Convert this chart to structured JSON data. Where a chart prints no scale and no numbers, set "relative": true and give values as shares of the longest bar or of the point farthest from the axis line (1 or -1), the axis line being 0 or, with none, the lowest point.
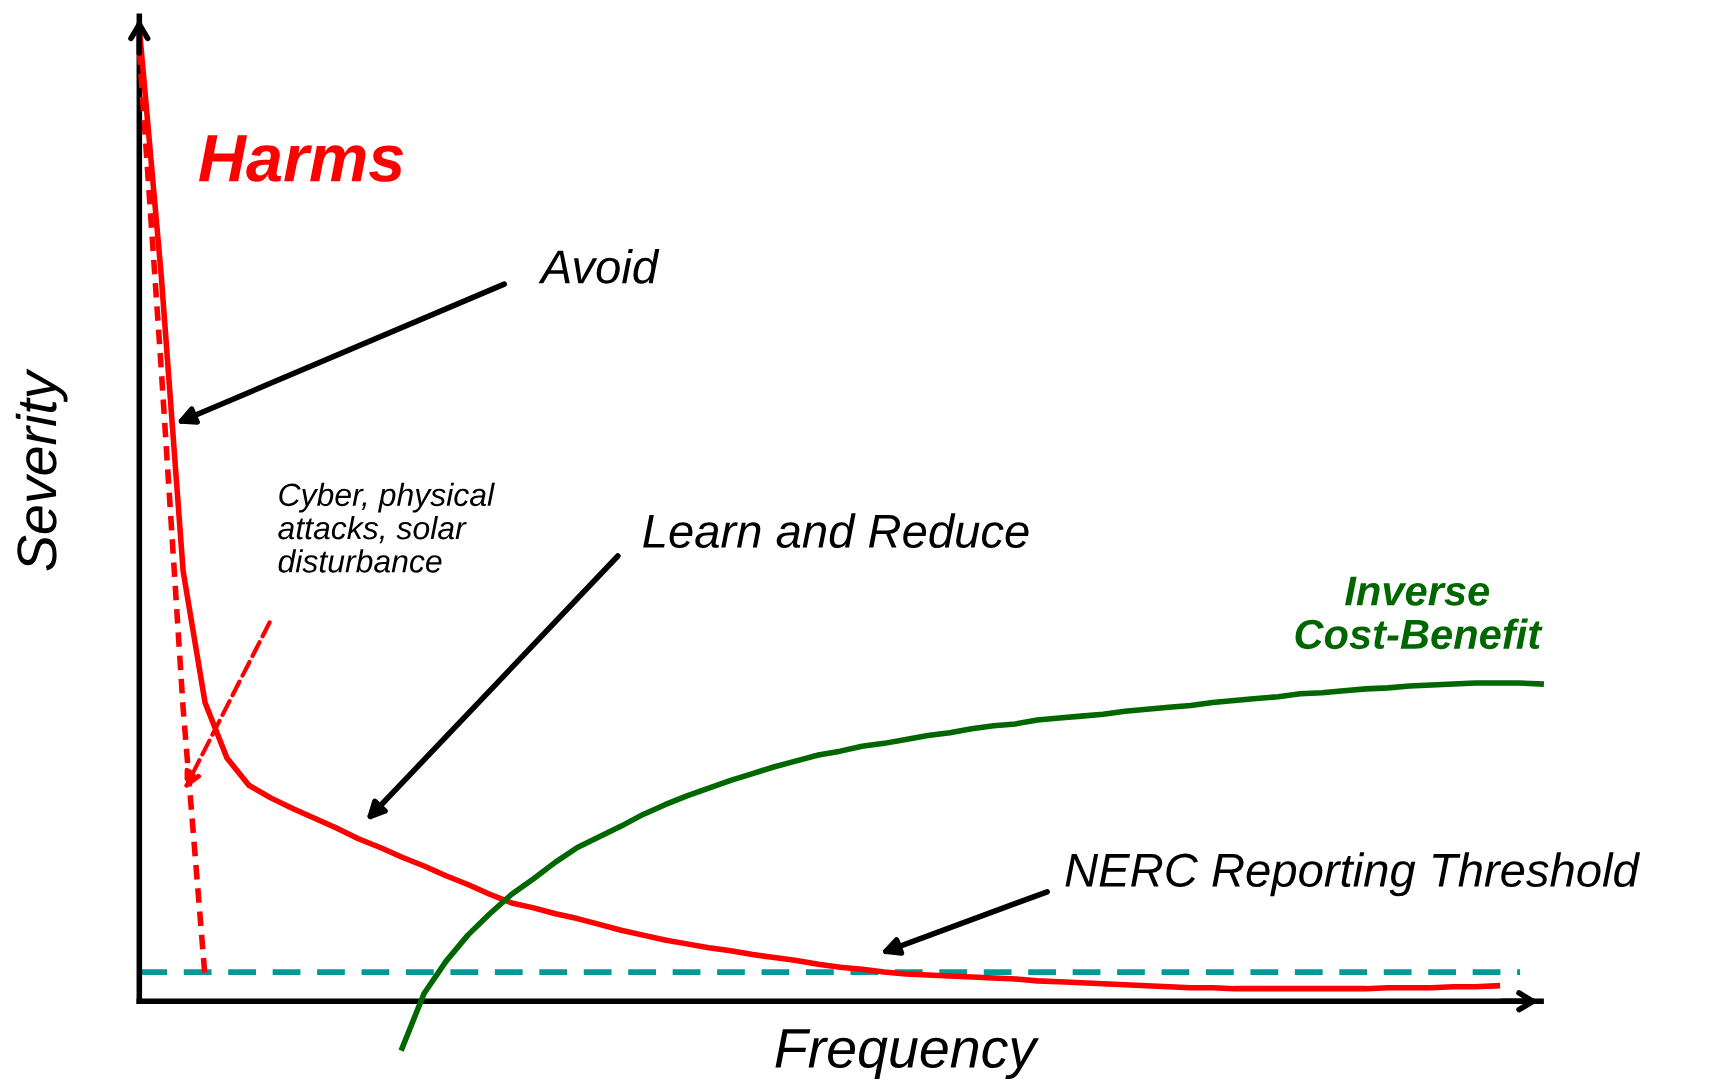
{
  "chart_data": {
    "type": "line",
    "relative": true,
    "xlabel": "Frequency",
    "ylabel": "Severity",
    "categories": [
      null,
      null,
      null,
      null,
      null,
      null,
      null,
      null,
      null,
      null,
      null,
      null,
      null,
      null,
      null,
      null,
      null,
      null,
      null,
      null,
      null,
      null,
      null,
      null,
      null,
      null,
      null,
      null,
      null,
      null,
      null,
      null,
      null,
      null,
      null,
      null,
      null,
      null,
      null,
      null,
      null,
      null,
      null,
      null,
      null,
      null,
      null,
      null,
      null,
      null,
      null,
      null,
      null,
      null,
      null,
      null,
      null,
      null,
      null,
      null,
      null,
      null,
      null,
      null,
      null
    ],
    "series": [
      {
        "name": "Harms",
        "color": "#ff0000",
        "line_style": "solid",
        "values": [
          1.0,
          0.746,
          0.442,
          0.307,
          0.25,
          0.222,
          0.209,
          0.198,
          0.188,
          0.178,
          0.167,
          0.158,
          0.148,
          0.139,
          0.129,
          0.12,
          0.11,
          0.101,
          0.096,
          0.09,
          0.085,
          0.079,
          0.073,
          0.068,
          0.063,
          0.059,
          0.055,
          0.052,
          0.048,
          0.045,
          0.042,
          0.038,
          0.035,
          0.033,
          0.03,
          0.028,
          0.027,
          0.026,
          0.025,
          0.024,
          0.023,
          0.021,
          0.02,
          0.019,
          0.018,
          0.017,
          0.016,
          0.015,
          0.014,
          0.014,
          0.013,
          0.013,
          0.013,
          0.013,
          0.013,
          0.013,
          0.013,
          0.014,
          0.014,
          0.014,
          0.015,
          0.015,
          0.016,
          null,
          null
        ]
      },
      {
        "color": "#ff0000",
        "line_style": "dashed",
        "values": [
          0.977,
          0.65,
          0.301,
          0.025,
          null,
          null,
          null,
          null,
          null,
          null,
          null,
          null,
          null,
          null,
          null,
          null,
          null,
          null,
          null,
          null,
          null,
          null,
          null,
          null,
          null,
          null,
          null,
          null,
          null,
          null,
          null,
          null,
          null,
          null,
          null,
          null,
          null,
          null,
          null,
          null,
          null,
          null,
          null,
          null,
          null,
          null,
          null,
          null,
          null,
          null,
          null,
          null,
          null,
          null,
          null,
          null,
          null,
          null,
          null,
          null,
          null,
          null,
          null,
          null,
          null
        ]
      },
      {
        "name": "Inverse\nCost-Benefit",
        "color": "#006600",
        "line_style": "solid",
        "values": [
          null,
          null,
          null,
          null,
          null,
          null,
          null,
          null,
          null,
          null,
          null,
          null,
          -0.048,
          0.008,
          0.041,
          0.068,
          0.09,
          0.11,
          0.126,
          0.143,
          0.158,
          0.169,
          0.18,
          0.192,
          0.202,
          0.211,
          0.219,
          0.227,
          0.234,
          0.241,
          0.247,
          0.253,
          0.257,
          0.262,
          0.265,
          0.269,
          0.273,
          0.276,
          0.28,
          0.283,
          0.285,
          0.289,
          0.291,
          0.293,
          0.295,
          0.298,
          0.3,
          0.302,
          0.304,
          0.307,
          0.309,
          0.311,
          0.313,
          0.316,
          0.317,
          0.319,
          0.321,
          0.322,
          0.324,
          0.325,
          0.326,
          0.327,
          0.327,
          0.327,
          0.326
        ]
      }
    ],
    "ref_lines": [
      {
        "axis": "y",
        "value": 0.03,
        "label": "NERC Reporting Threshold",
        "color": "#009999",
        "line_style": "dashed"
      }
    ],
    "annotations": [
      "Avoid",
      "Learn and Reduce",
      "Cyber, physical\nattacks, solar\ndisturbance"
    ]
  }
}
